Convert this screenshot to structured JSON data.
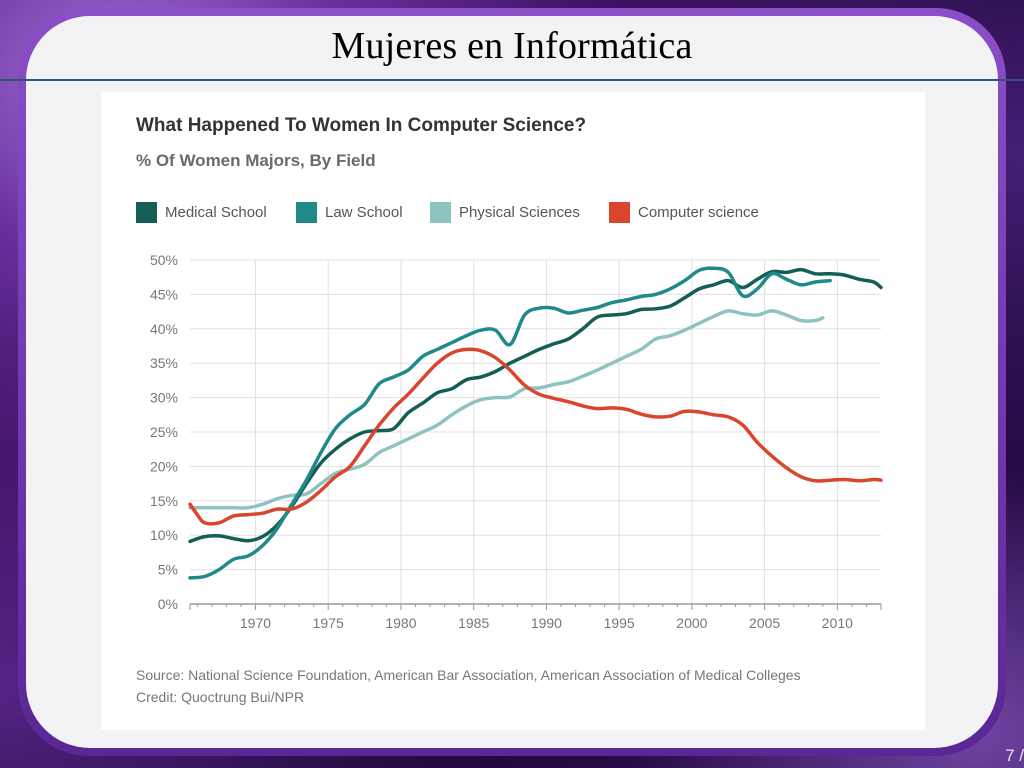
{
  "slide": {
    "title": "Mujeres en Informática",
    "page_number": "7 /"
  },
  "colors": {
    "medical": "#155e55",
    "law": "#1f8a88",
    "physical": "#8fc3c1",
    "cs": "#d9452d",
    "grid": "#e1e1e1",
    "axis": "#999999",
    "tick_text": "#777777"
  },
  "chart_data": {
    "type": "line",
    "title": "What Happened To Women In Computer Science?",
    "subtitle": "% Of Women Majors, By Field",
    "xlim": [
      1965.5,
      2013
    ],
    "ylim": [
      0,
      50
    ],
    "x_ticks": [
      1970,
      1975,
      1980,
      1985,
      1990,
      1995,
      2000,
      2005,
      2010
    ],
    "y_ticks": [
      0,
      5,
      10,
      15,
      20,
      25,
      30,
      35,
      40,
      45,
      50
    ],
    "y_tick_labels": [
      "0%",
      "5%",
      "10%",
      "15%",
      "20%",
      "25%",
      "30%",
      "35%",
      "40%",
      "45%",
      "50%"
    ],
    "grid": "vertical and horizontal",
    "legend_position": "top-left",
    "series": [
      {
        "name": "Medical School",
        "key": "medical",
        "points": [
          [
            1965.5,
            9.1
          ],
          [
            1966.5,
            9.8
          ],
          [
            1967.5,
            9.9
          ],
          [
            1968.5,
            9.5
          ],
          [
            1969.5,
            9.2
          ],
          [
            1970.5,
            9.8
          ],
          [
            1971.5,
            11.5
          ],
          [
            1972.5,
            14.2
          ],
          [
            1973.5,
            17.5
          ],
          [
            1974.5,
            20.5
          ],
          [
            1975.5,
            22.5
          ],
          [
            1976.5,
            24.0
          ],
          [
            1977.5,
            25.0
          ],
          [
            1978.5,
            25.2
          ],
          [
            1979.5,
            25.5
          ],
          [
            1980.5,
            27.8
          ],
          [
            1981.5,
            29.2
          ],
          [
            1982.5,
            30.7
          ],
          [
            1983.5,
            31.3
          ],
          [
            1984.5,
            32.6
          ],
          [
            1985.5,
            33.0
          ],
          [
            1986.5,
            33.8
          ],
          [
            1987.5,
            35.0
          ],
          [
            1988.5,
            36.0
          ],
          [
            1989.5,
            37.0
          ],
          [
            1990.5,
            37.8
          ],
          [
            1991.5,
            38.5
          ],
          [
            1992.5,
            40.0
          ],
          [
            1993.5,
            41.7
          ],
          [
            1994.5,
            42.0
          ],
          [
            1995.5,
            42.2
          ],
          [
            1996.5,
            42.8
          ],
          [
            1997.5,
            42.9
          ],
          [
            1998.5,
            43.3
          ],
          [
            1999.5,
            44.5
          ],
          [
            2000.5,
            45.8
          ],
          [
            2001.5,
            46.4
          ],
          [
            2002.5,
            47.0
          ],
          [
            2003.5,
            46.0
          ],
          [
            2004.5,
            47.2
          ],
          [
            2005.5,
            48.3
          ],
          [
            2006.5,
            48.2
          ],
          [
            2007.5,
            48.6
          ],
          [
            2008.5,
            48.0
          ],
          [
            2009.5,
            48.0
          ],
          [
            2010.5,
            47.8
          ],
          [
            2011.5,
            47.2
          ],
          [
            2012.5,
            46.8
          ],
          [
            2013.0,
            46.0
          ]
        ]
      },
      {
        "name": "Law School",
        "key": "law",
        "points": [
          [
            1965.5,
            3.8
          ],
          [
            1966.5,
            4.0
          ],
          [
            1967.5,
            5.0
          ],
          [
            1968.5,
            6.5
          ],
          [
            1969.5,
            7.0
          ],
          [
            1970.5,
            8.5
          ],
          [
            1971.5,
            11.0
          ],
          [
            1972.5,
            14.5
          ],
          [
            1973.5,
            18.0
          ],
          [
            1974.5,
            22.0
          ],
          [
            1975.5,
            25.5
          ],
          [
            1976.5,
            27.5
          ],
          [
            1977.5,
            29.0
          ],
          [
            1978.5,
            32.0
          ],
          [
            1979.5,
            33.0
          ],
          [
            1980.5,
            34.0
          ],
          [
            1981.5,
            36.0
          ],
          [
            1982.5,
            37.0
          ],
          [
            1983.5,
            38.0
          ],
          [
            1984.5,
            39.0
          ],
          [
            1985.5,
            39.8
          ],
          [
            1986.5,
            39.8
          ],
          [
            1987.5,
            37.7
          ],
          [
            1988.5,
            42.0
          ],
          [
            1989.5,
            43.0
          ],
          [
            1990.5,
            43.0
          ],
          [
            1991.5,
            42.3
          ],
          [
            1992.5,
            42.7
          ],
          [
            1993.5,
            43.1
          ],
          [
            1994.5,
            43.8
          ],
          [
            1995.5,
            44.2
          ],
          [
            1996.5,
            44.7
          ],
          [
            1997.5,
            45.0
          ],
          [
            1998.5,
            45.8
          ],
          [
            1999.5,
            47.0
          ],
          [
            2000.5,
            48.5
          ],
          [
            2001.5,
            48.8
          ],
          [
            2002.5,
            48.2
          ],
          [
            2003.5,
            44.8
          ],
          [
            2004.5,
            45.8
          ],
          [
            2005.5,
            48.0
          ],
          [
            2006.5,
            47.2
          ],
          [
            2007.5,
            46.4
          ],
          [
            2008.5,
            46.8
          ],
          [
            2009.5,
            47.0
          ]
        ]
      },
      {
        "name": "Physical Sciences",
        "key": "physical",
        "points": [
          [
            1965.5,
            14.0
          ],
          [
            1966.5,
            14.0
          ],
          [
            1967.5,
            14.0
          ],
          [
            1968.5,
            14.0
          ],
          [
            1969.5,
            14.0
          ],
          [
            1970.5,
            14.5
          ],
          [
            1971.5,
            15.3
          ],
          [
            1972.5,
            15.8
          ],
          [
            1973.5,
            16.0
          ],
          [
            1974.5,
            17.5
          ],
          [
            1975.5,
            19.0
          ],
          [
            1976.5,
            19.6
          ],
          [
            1977.5,
            20.3
          ],
          [
            1978.5,
            22.0
          ],
          [
            1979.5,
            23.0
          ],
          [
            1980.5,
            24.0
          ],
          [
            1981.5,
            25.0
          ],
          [
            1982.5,
            26.0
          ],
          [
            1983.5,
            27.5
          ],
          [
            1984.5,
            28.8
          ],
          [
            1985.5,
            29.7
          ],
          [
            1986.5,
            30.0
          ],
          [
            1987.5,
            30.1
          ],
          [
            1988.5,
            31.3
          ],
          [
            1989.5,
            31.4
          ],
          [
            1990.5,
            31.9
          ],
          [
            1991.5,
            32.3
          ],
          [
            1992.5,
            33.1
          ],
          [
            1993.5,
            34.0
          ],
          [
            1994.5,
            35.0
          ],
          [
            1995.5,
            36.0
          ],
          [
            1996.5,
            37.0
          ],
          [
            1997.5,
            38.5
          ],
          [
            1998.5,
            39.0
          ],
          [
            1999.5,
            39.8
          ],
          [
            2000.5,
            40.8
          ],
          [
            2001.5,
            41.8
          ],
          [
            2002.5,
            42.6
          ],
          [
            2003.5,
            42.2
          ],
          [
            2004.5,
            42.0
          ],
          [
            2005.5,
            42.6
          ],
          [
            2006.5,
            42.0
          ],
          [
            2007.5,
            41.2
          ],
          [
            2008.5,
            41.2
          ],
          [
            2009.0,
            41.6
          ]
        ]
      },
      {
        "name": "Computer science",
        "key": "cs",
        "points": [
          [
            1965.5,
            14.5
          ],
          [
            1966.0,
            13.0
          ],
          [
            1966.5,
            11.8
          ],
          [
            1967.5,
            11.8
          ],
          [
            1968.5,
            12.8
          ],
          [
            1969.5,
            13.0
          ],
          [
            1970.5,
            13.2
          ],
          [
            1971.5,
            13.8
          ],
          [
            1972.5,
            13.8
          ],
          [
            1973.5,
            14.8
          ],
          [
            1974.5,
            16.5
          ],
          [
            1975.5,
            18.5
          ],
          [
            1976.5,
            20.0
          ],
          [
            1977.5,
            23.0
          ],
          [
            1978.5,
            26.0
          ],
          [
            1979.5,
            28.5
          ],
          [
            1980.5,
            30.5
          ],
          [
            1981.5,
            32.8
          ],
          [
            1982.5,
            35.0
          ],
          [
            1983.5,
            36.5
          ],
          [
            1984.5,
            37.0
          ],
          [
            1985.5,
            36.8
          ],
          [
            1986.5,
            35.8
          ],
          [
            1987.5,
            34.0
          ],
          [
            1988.5,
            31.8
          ],
          [
            1989.5,
            30.5
          ],
          [
            1990.5,
            29.9
          ],
          [
            1991.5,
            29.4
          ],
          [
            1992.5,
            28.8
          ],
          [
            1993.5,
            28.4
          ],
          [
            1994.5,
            28.5
          ],
          [
            1995.5,
            28.3
          ],
          [
            1996.5,
            27.6
          ],
          [
            1997.5,
            27.2
          ],
          [
            1998.5,
            27.3
          ],
          [
            1999.5,
            28.0
          ],
          [
            2000.5,
            27.9
          ],
          [
            2001.5,
            27.5
          ],
          [
            2002.5,
            27.2
          ],
          [
            2003.5,
            26.0
          ],
          [
            2004.5,
            23.5
          ],
          [
            2005.5,
            21.5
          ],
          [
            2006.5,
            19.8
          ],
          [
            2007.5,
            18.5
          ],
          [
            2008.5,
            17.9
          ],
          [
            2009.5,
            18.0
          ],
          [
            2010.5,
            18.1
          ],
          [
            2011.5,
            17.9
          ],
          [
            2012.5,
            18.1
          ],
          [
            2013.0,
            18.0
          ]
        ]
      }
    ]
  },
  "footer": {
    "source": "Source: National Science Foundation, American Bar Association, American Association of Medical Colleges",
    "credit": "Credit: Quoctrung Bui/NPR"
  }
}
